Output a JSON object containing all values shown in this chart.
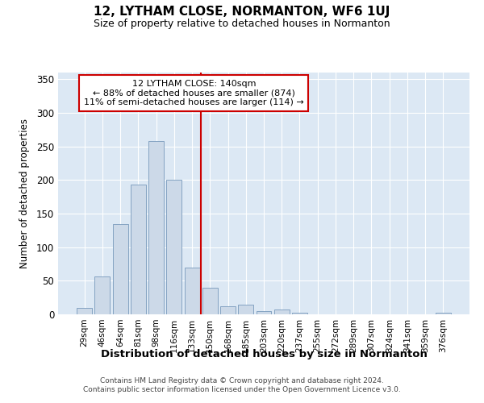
{
  "title": "12, LYTHAM CLOSE, NORMANTON, WF6 1UJ",
  "subtitle": "Size of property relative to detached houses in Normanton",
  "xlabel": "Distribution of detached houses by size in Normanton",
  "ylabel": "Number of detached properties",
  "bar_color": "#ccd9e8",
  "bar_edge_color": "#7799bb",
  "background_color": "#dce8f4",
  "vline_color": "#cc0000",
  "annotation_text": "12 LYTHAM CLOSE: 140sqm\n← 88% of detached houses are smaller (874)\n11% of semi-detached houses are larger (114) →",
  "annotation_box_color": "#ffffff",
  "annotation_box_edge": "#cc0000",
  "categories": [
    "29sqm",
    "46sqm",
    "64sqm",
    "81sqm",
    "98sqm",
    "116sqm",
    "133sqm",
    "150sqm",
    "168sqm",
    "185sqm",
    "203sqm",
    "220sqm",
    "237sqm",
    "255sqm",
    "272sqm",
    "289sqm",
    "307sqm",
    "324sqm",
    "341sqm",
    "359sqm",
    "376sqm"
  ],
  "values": [
    10,
    57,
    135,
    193,
    258,
    200,
    70,
    40,
    12,
    14,
    5,
    7,
    3,
    0,
    0,
    0,
    0,
    0,
    0,
    0,
    3
  ],
  "ylim": [
    0,
    360
  ],
  "yticks": [
    0,
    50,
    100,
    150,
    200,
    250,
    300,
    350
  ],
  "footer_line1": "Contains HM Land Registry data © Crown copyright and database right 2024.",
  "footer_line2": "Contains public sector information licensed under the Open Government Licence v3.0."
}
